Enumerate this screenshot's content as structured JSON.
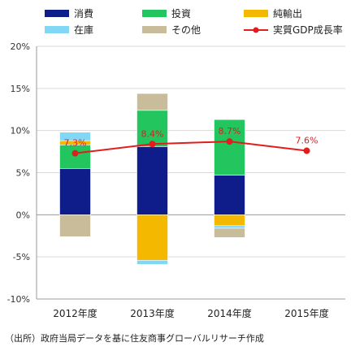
{
  "chart_data": {
    "type": "bar",
    "stacked": true,
    "categories": [
      "2012年度",
      "2013年度",
      "2014年度",
      "2015年度"
    ],
    "ylim": [
      -10,
      20
    ],
    "yticks": [
      -10,
      -5,
      0,
      5,
      10,
      15,
      20
    ],
    "ytick_format": "%",
    "legend_position": "top",
    "series": [
      {
        "name": "消費",
        "color": "#0f1d8a",
        "values": [
          5.5,
          8.1,
          4.7,
          null
        ]
      },
      {
        "name": "投資",
        "color": "#22c55e",
        "values": [
          2.8,
          4.3,
          6.6,
          null
        ]
      },
      {
        "name": "純輸出",
        "color": "#f5b800",
        "values": [
          0.5,
          -5.4,
          -1.3,
          null
        ]
      },
      {
        "name": "在庫",
        "color": "#82d7f5",
        "values": [
          1.0,
          -0.5,
          -0.3,
          null
        ]
      },
      {
        "name": "その他",
        "color": "#c8bc9a",
        "values": [
          -2.6,
          2.0,
          -1.1,
          null
        ]
      }
    ],
    "line": {
      "name": "実質GDP成長率",
      "color": "#e11d1d",
      "values": [
        7.3,
        8.4,
        8.7,
        7.6
      ],
      "labels": [
        "7.3%",
        "8.4%",
        "8.7%",
        "7.6%"
      ]
    }
  },
  "source_note": "（出所）政府当局データを基に住友商事グローバルリサーチ作成"
}
